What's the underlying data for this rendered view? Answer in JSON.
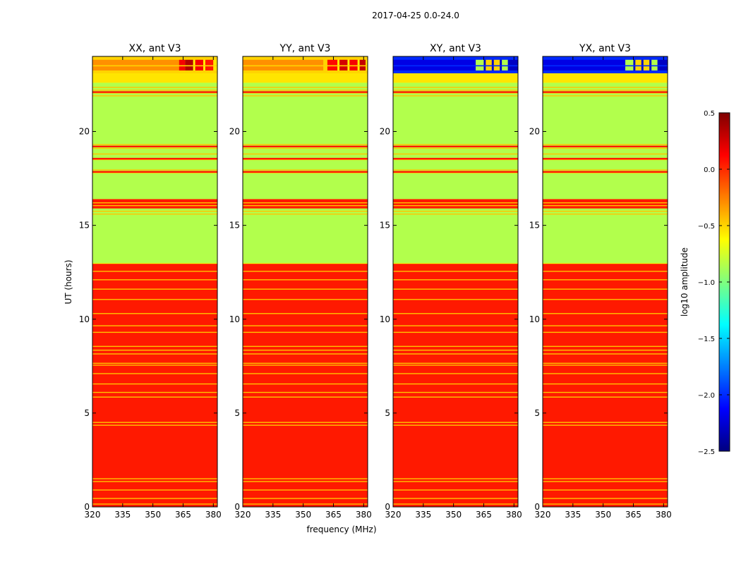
{
  "figure": {
    "suptitle": "2017-04-25 0.0-24.0"
  },
  "colormap": {
    "name": "jet",
    "stops": [
      "#00007f",
      "#0000ff",
      "#007fff",
      "#00ffff",
      "#7fff7f",
      "#ffff00",
      "#ff7f00",
      "#ff0000",
      "#7f0000"
    ]
  },
  "chart_data": {
    "type": "heatmap",
    "xlabel": "frequency (MHz)",
    "ylabel": "UT (hours)",
    "xlim": [
      320,
      382
    ],
    "ylim": [
      0,
      24
    ],
    "xticks": [
      320,
      335,
      350,
      365,
      380
    ],
    "yticks": [
      0,
      5,
      10,
      15,
      20
    ],
    "colorbar": {
      "label": "log10 amplitude",
      "range": [
        -2.5,
        0.5
      ],
      "ticks": [
        "0.5",
        "0.0",
        "−0.5",
        "−1.0",
        "−1.5",
        "−2.0",
        "−2.5"
      ],
      "tick_values": [
        0.5,
        0.0,
        -0.5,
        -1.0,
        -1.5,
        -2.0,
        -2.5
      ]
    },
    "background_value": -0.7,
    "time_bands": [
      {
        "from": 0,
        "to": 12.95,
        "value": 0.05
      },
      {
        "from": 13.0,
        "to": 15.9,
        "value": -0.85
      },
      {
        "from": 15.9,
        "to": 16.4,
        "value": 0.05
      },
      {
        "from": 16.4,
        "to": 22.6,
        "value": -0.85
      },
      {
        "from": 22.6,
        "to": 23.1,
        "value": -0.55
      }
    ],
    "thin_lines": {
      "value": -0.45,
      "hours": [
        0.15,
        0.45,
        0.9,
        1.35,
        1.5,
        4.35,
        4.5,
        5.85,
        6.1,
        6.55,
        7.1,
        7.55,
        7.65,
        8.15,
        8.35,
        8.55,
        9.3,
        9.65,
        10.3,
        11.05,
        11.6,
        12.1,
        12.55,
        15.6,
        15.75,
        16.05,
        16.2,
        17.8,
        17.95,
        18.5,
        18.8,
        19.1,
        19.3,
        21.9,
        22.05,
        22.2,
        22.35
      ]
    },
    "thick_lines": {
      "value": 0.05,
      "hours": [
        17.85,
        18.55,
        19.2,
        22.1
      ]
    },
    "top_rows": [
      23.15,
      23.5,
      23.85
    ],
    "panels": [
      {
        "title": "XX, ant V3",
        "top_base": -0.5,
        "top_block": [
          {
            "from": 320,
            "to": 363,
            "value": -0.3
          },
          {
            "from": 363,
            "to": 366,
            "value": 0.15
          },
          {
            "from": 366,
            "to": 370,
            "value": 0.35
          },
          {
            "from": 370,
            "to": 371,
            "value": -0.6
          },
          {
            "from": 371,
            "to": 375,
            "value": 0.15
          },
          {
            "from": 375,
            "to": 376,
            "value": -0.6
          },
          {
            "from": 376,
            "to": 380,
            "value": 0.05
          },
          {
            "from": 380,
            "to": 382,
            "value": -0.55
          }
        ]
      },
      {
        "title": "YY, ant V3",
        "top_base": -0.5,
        "top_block": [
          {
            "from": 320,
            "to": 360,
            "value": -0.3
          },
          {
            "from": 360,
            "to": 362,
            "value": -0.5
          },
          {
            "from": 362,
            "to": 367,
            "value": 0.1
          },
          {
            "from": 367,
            "to": 368,
            "value": -0.6
          },
          {
            "from": 368,
            "to": 372,
            "value": 0.25
          },
          {
            "from": 372,
            "to": 373,
            "value": -0.6
          },
          {
            "from": 373,
            "to": 377,
            "value": 0.15
          },
          {
            "from": 377,
            "to": 378,
            "value": -0.6
          },
          {
            "from": 378,
            "to": 381,
            "value": 0.3
          },
          {
            "from": 381,
            "to": 382,
            "value": -0.55
          }
        ]
      },
      {
        "title": "XY, ant V3",
        "top_base": -2.0,
        "top_block": [
          {
            "from": 320,
            "to": 361,
            "value": -2.2
          },
          {
            "from": 361,
            "to": 365,
            "value": -0.85
          },
          {
            "from": 365,
            "to": 366,
            "value": -2.3
          },
          {
            "from": 366,
            "to": 369,
            "value": -0.5
          },
          {
            "from": 369,
            "to": 370,
            "value": -2.3
          },
          {
            "from": 370,
            "to": 373,
            "value": -0.5
          },
          {
            "from": 373,
            "to": 374,
            "value": -2.3
          },
          {
            "from": 374,
            "to": 377,
            "value": -0.85
          },
          {
            "from": 377,
            "to": 378,
            "value": -2.3
          },
          {
            "from": 378,
            "to": 382,
            "value": -2.3
          }
        ]
      },
      {
        "title": "YX, ant V3",
        "top_base": -2.0,
        "top_block": [
          {
            "from": 320,
            "to": 361,
            "value": -2.2
          },
          {
            "from": 361,
            "to": 365,
            "value": -0.85
          },
          {
            "from": 365,
            "to": 366,
            "value": -2.3
          },
          {
            "from": 366,
            "to": 369,
            "value": -0.5
          },
          {
            "from": 369,
            "to": 370,
            "value": -2.3
          },
          {
            "from": 370,
            "to": 373,
            "value": -0.5
          },
          {
            "from": 373,
            "to": 374,
            "value": -2.3
          },
          {
            "from": 374,
            "to": 377,
            "value": -0.85
          },
          {
            "from": 377,
            "to": 378,
            "value": -2.3
          },
          {
            "from": 378,
            "to": 382,
            "value": -2.3
          }
        ]
      }
    ]
  }
}
